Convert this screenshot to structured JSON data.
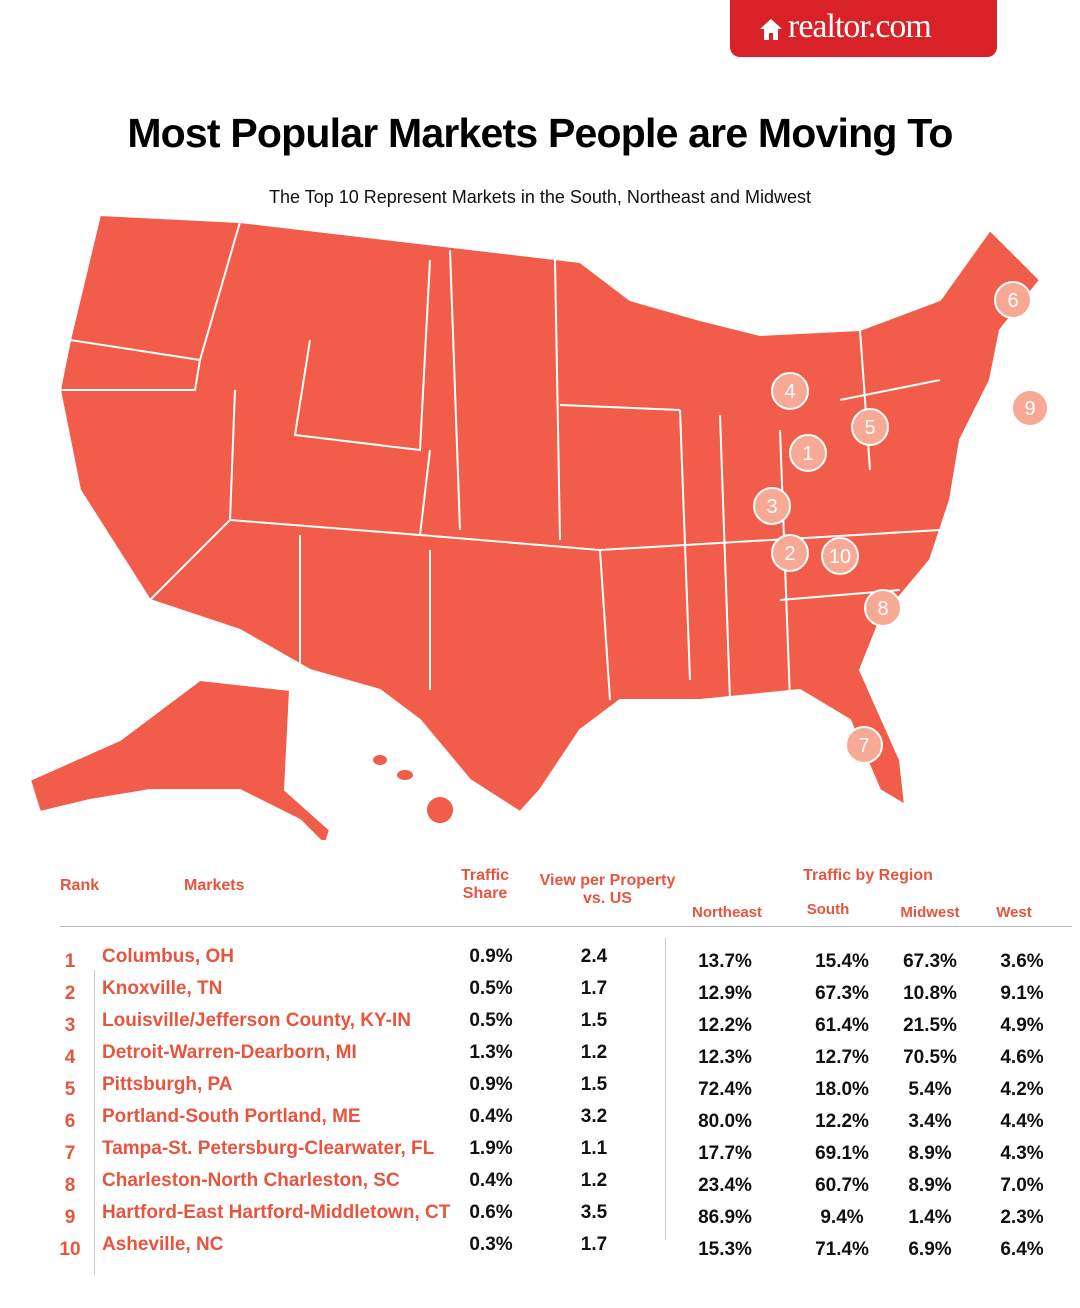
{
  "brand": "realtor.com",
  "title": "Most Popular Markets People are Moving To",
  "subtitle": "The Top 10 Represent Markets in the South, Northeast and Midwest",
  "map": {
    "markers": [
      "1",
      "2",
      "3",
      "4",
      "5",
      "6",
      "7",
      "8",
      "9",
      "10"
    ]
  },
  "table": {
    "headers": {
      "rank": "Rank",
      "markets": "Markets",
      "traffic_share": "Traffic Share",
      "views": "View per Property vs. US",
      "region": "Traffic by Region",
      "northeast": "Northeast",
      "south": "South",
      "midwest": "Midwest",
      "west": "West"
    },
    "rows": [
      [
        "1",
        "Columbus, OH",
        "0.9%",
        "2.4",
        "13.7%",
        "15.4%",
        "67.3%",
        "3.6%"
      ],
      [
        "2",
        "Knoxville, TN",
        "0.5%",
        "1.7",
        "12.9%",
        "67.3%",
        "10.8%",
        "9.1%"
      ],
      [
        "3",
        "Louisville/Jefferson County, KY-IN",
        "0.5%",
        "1.5",
        "12.2%",
        "61.4%",
        "21.5%",
        "4.9%"
      ],
      [
        "4",
        "Detroit-Warren-Dearborn, MI",
        "1.3%",
        "1.2",
        "12.3%",
        "12.7%",
        "70.5%",
        "4.6%"
      ],
      [
        "5",
        "Pittsburgh, PA",
        "0.9%",
        "1.5",
        "72.4%",
        "18.0%",
        "5.4%",
        "4.2%"
      ],
      [
        "6",
        "Portland-South Portland, ME",
        "0.4%",
        "3.2",
        "80.0%",
        "12.2%",
        "3.4%",
        "4.4%"
      ],
      [
        "7",
        "Tampa-St. Petersburg-Clearwater, FL",
        "1.9%",
        "1.1",
        "17.7%",
        "69.1%",
        "8.9%",
        "4.3%"
      ],
      [
        "8",
        "Charleston-North Charleston, SC",
        "0.4%",
        "1.2",
        "23.4%",
        "60.7%",
        "8.9%",
        "7.0%"
      ],
      [
        "9",
        "Hartford-East Hartford-Middletown, CT",
        "0.6%",
        "3.5",
        "86.9%",
        "9.4%",
        "1.4%",
        "2.3%"
      ],
      [
        "10",
        "Asheville, NC",
        "0.3%",
        "1.7",
        "15.3%",
        "71.4%",
        "6.9%",
        "6.4%"
      ]
    ]
  }
}
